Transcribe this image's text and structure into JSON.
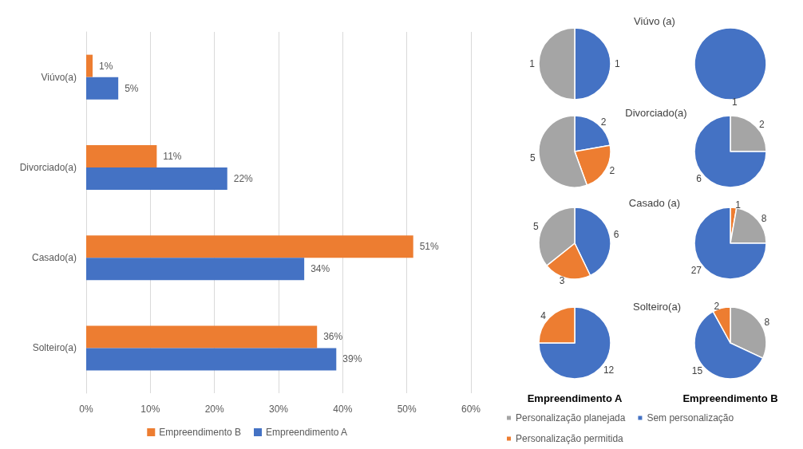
{
  "chart_data": [
    {
      "type": "bar",
      "orientation": "horizontal",
      "categories": [
        "Viúvo(a)",
        "Divorciado(a)",
        "Casado(a)",
        "Solteiro(a)"
      ],
      "series": [
        {
          "name": "Empreendimento B",
          "color": "#ed7d31",
          "values": [
            1,
            11,
            51,
            36
          ],
          "value_labels": [
            "1%",
            "11%",
            "51%",
            "36%"
          ]
        },
        {
          "name": "Empreendimento A",
          "color": "#4472c4",
          "values": [
            5,
            22,
            34,
            39
          ],
          "value_labels": [
            "5%",
            "22%",
            "34%",
            "39%"
          ]
        }
      ],
      "xlim": [
        0,
        60
      ],
      "xticks": [
        {
          "value": 0,
          "label": "0%"
        },
        {
          "value": 10,
          "label": "10%"
        },
        {
          "value": 20,
          "label": "20%"
        },
        {
          "value": 30,
          "label": "30%"
        },
        {
          "value": 40,
          "label": "40%"
        },
        {
          "value": 50,
          "label": "50%"
        },
        {
          "value": 60,
          "label": "60%"
        }
      ],
      "grid": "x",
      "legend": "bottom"
    },
    {
      "type": "pie",
      "values": [
        1,
        1
      ],
      "colors": [
        "#4472c4",
        "#a5a5a5"
      ],
      "data_labels": true
    },
    {
      "type": "pie",
      "title": "Viúvo (a)",
      "values": [
        1
      ],
      "colors": [
        "#4472c4"
      ],
      "data_labels": true
    },
    {
      "type": "pie",
      "values": [
        2,
        2,
        5
      ],
      "colors": [
        "#4472c4",
        "#ed7d31",
        "#a5a5a5"
      ],
      "data_labels": true
    },
    {
      "type": "pie",
      "title": "Divorciado(a)",
      "values": [
        2,
        6
      ],
      "colors": [
        "#a5a5a5",
        "#4472c4"
      ],
      "data_labels": true
    },
    {
      "type": "pie",
      "values": [
        6,
        3,
        5
      ],
      "colors": [
        "#4472c4",
        "#ed7d31",
        "#a5a5a5"
      ],
      "data_labels": true
    },
    {
      "type": "pie",
      "title": "Casado (a)",
      "values": [
        1,
        8,
        27
      ],
      "colors": [
        "#ed7d31",
        "#a5a5a5",
        "#4472c4"
      ],
      "data_labels": true
    },
    {
      "type": "pie",
      "xlabel": "Empreendimento A",
      "values": [
        12,
        4
      ],
      "colors": [
        "#4472c4",
        "#ed7d31"
      ],
      "data_labels": true
    },
    {
      "type": "pie",
      "title": "Solteiro(a)",
      "xlabel": "Empreendimento B",
      "categories": [
        "Personalização planejada",
        "Sem personalização",
        "Personalização permitida"
      ],
      "values": [
        8,
        15,
        2
      ],
      "colors": [
        "#a5a5a5",
        "#4472c4",
        "#ed7d31"
      ],
      "data_labels": true,
      "legend": "bottom"
    }
  ]
}
